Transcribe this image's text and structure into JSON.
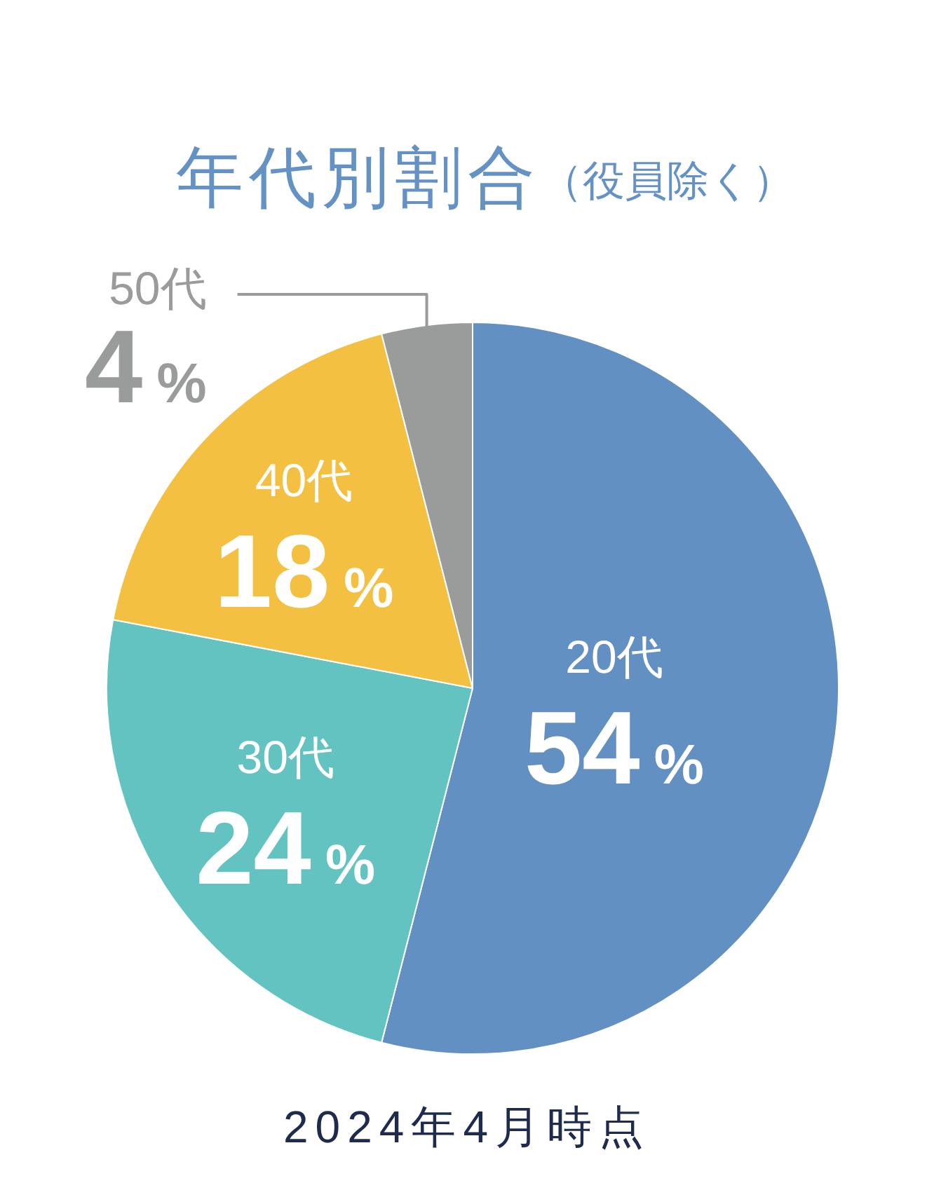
{
  "chart_data": {
    "type": "pie",
    "title": "年代別割合",
    "subtitle": "（役員除く）",
    "categories": [
      "20代",
      "30代",
      "40代",
      "50代"
    ],
    "values": [
      54,
      24,
      18,
      4
    ],
    "colors": [
      "#6290c3",
      "#63c3c1",
      "#f3c042",
      "#9a9b9b"
    ],
    "value_labels": [
      "54%",
      "24%",
      "18%",
      "4%"
    ],
    "annotations": [
      "2024年4月時点"
    ]
  }
}
